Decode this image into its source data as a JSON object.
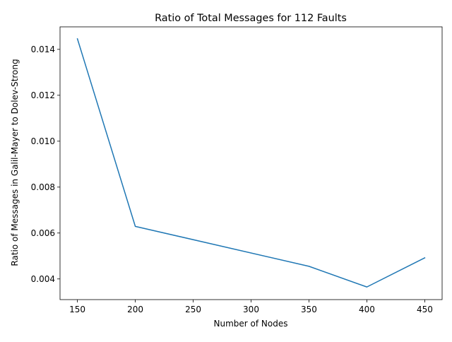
{
  "chart_data": {
    "type": "line",
    "title": "Ratio of Total Messages for 112 Faults",
    "xlabel": "Number of Nodes",
    "ylabel": "Ratio of Messages in Galil-Mayer to Dolev-Strong",
    "x": [
      150,
      200,
      350,
      400,
      450
    ],
    "series": [
      {
        "values": [
          0.01446,
          0.00629,
          0.00455,
          0.00365,
          0.00492
        ],
        "color": "#1f77b4"
      }
    ],
    "xlim": [
      135,
      465
    ],
    "ylim": [
      0.0031,
      0.01498
    ],
    "xticks": [
      150,
      200,
      250,
      300,
      350,
      400,
      450
    ],
    "xtick_labels": [
      "150",
      "200",
      "250",
      "300",
      "350",
      "400",
      "450"
    ],
    "yticks": [
      0.004,
      0.006,
      0.008,
      0.01,
      0.012,
      0.014
    ],
    "ytick_labels": [
      "0.004",
      "0.006",
      "0.008",
      "0.010",
      "0.012",
      "0.014"
    ],
    "grid": false,
    "legend": "none"
  }
}
